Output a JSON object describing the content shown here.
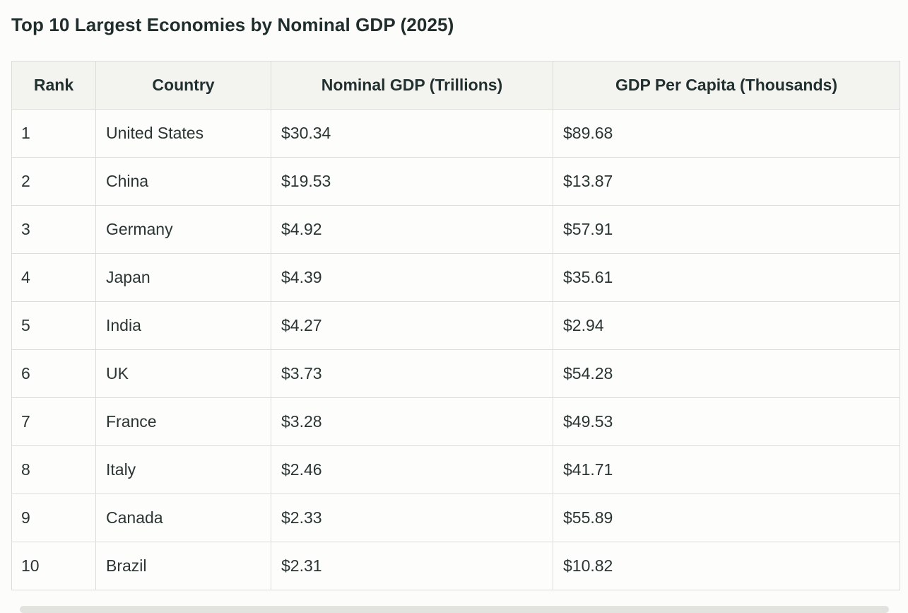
{
  "title": "Top 10 Largest Economies by Nominal GDP (2025)",
  "table": {
    "headers": [
      "Rank",
      "Country",
      "Nominal GDP (Trillions)",
      "GDP Per Capita (Thousands)"
    ],
    "rows": [
      [
        "1",
        "United States",
        "$30.34",
        "$89.68"
      ],
      [
        "2",
        "China",
        "$19.53",
        "$13.87"
      ],
      [
        "3",
        "Germany",
        "$4.92",
        "$57.91"
      ],
      [
        "4",
        "Japan",
        "$4.39",
        "$35.61"
      ],
      [
        "5",
        "India",
        "$4.27",
        "$2.94"
      ],
      [
        "6",
        "UK",
        "$3.73",
        "$54.28"
      ],
      [
        "7",
        "France",
        "$3.28",
        "$49.53"
      ],
      [
        "8",
        "Italy",
        "$2.46",
        "$41.71"
      ],
      [
        "9",
        "Canada",
        "$2.33",
        "$55.89"
      ],
      [
        "10",
        "Brazil",
        "$2.31",
        "$10.82"
      ]
    ]
  }
}
